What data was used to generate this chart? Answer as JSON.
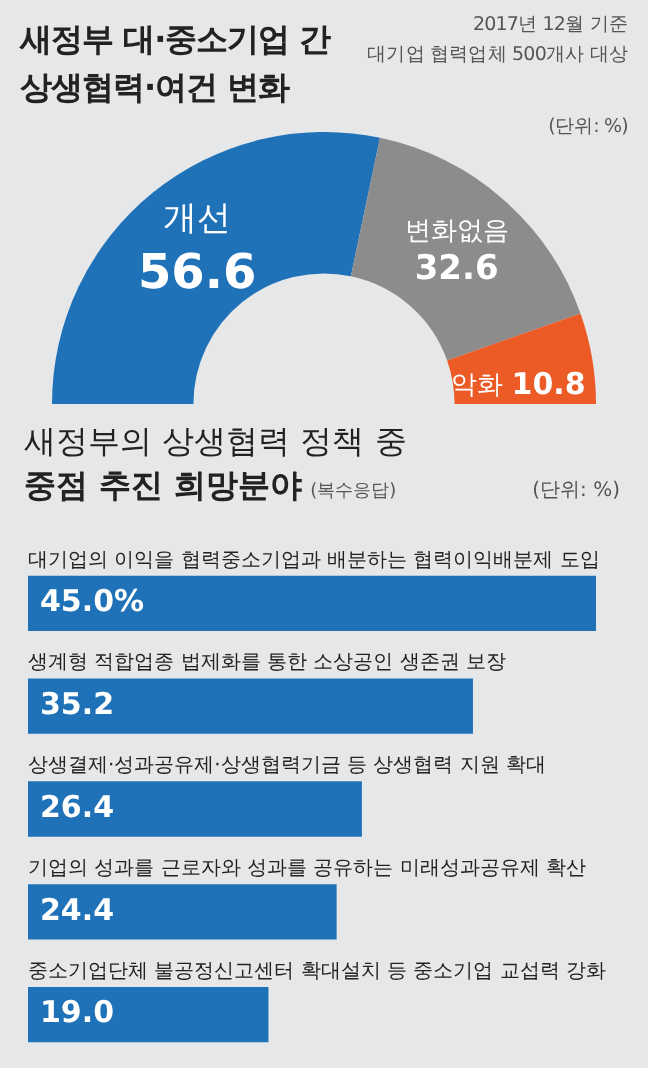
{
  "chart_data": [
    {
      "type": "donut",
      "title": "새정부 대·중소기업 간\n상생협력·여건 변화",
      "annotations": [
        "2017년 12월 기준",
        "대기업 협력업체 500개사 대상",
        "(단위: %)"
      ],
      "categories": [
        "개선",
        "변화없음",
        "악화"
      ],
      "values": [
        56.6,
        32.6,
        10.8
      ],
      "colors": [
        "#1f72b8",
        "#8c8c8c",
        "#ec5a26"
      ],
      "data_labels": true
    },
    {
      "type": "bar",
      "orientation": "horizontal",
      "title": "새정부의 상생협력 정책 중",
      "subtitle": "중점 추진 희망분야",
      "annotations": [
        "(복수응답)",
        "(단위: %)"
      ],
      "categories": [
        "대기업의 이익을 협력중소기업과 배분하는 협력이익배분제 도입",
        "생계형 적합업종 법제화를 통한 소상공인 생존권 보장",
        "상생결제·성과공유제·상생협력기금 등 상생협력 지원 확대",
        "기업의 성과를 근로자와 성과를 공유하는 미래성과공유제 확산",
        "중소기업단체 불공정신고센터 확대설치 등 중소기업 교섭력 강화"
      ],
      "values": [
        45.0,
        35.2,
        26.4,
        24.4,
        19.0
      ],
      "color": "#1f72b8",
      "value_labels": [
        "45.0%",
        "35.2",
        "26.4",
        "24.4",
        "19.0"
      ]
    }
  ]
}
